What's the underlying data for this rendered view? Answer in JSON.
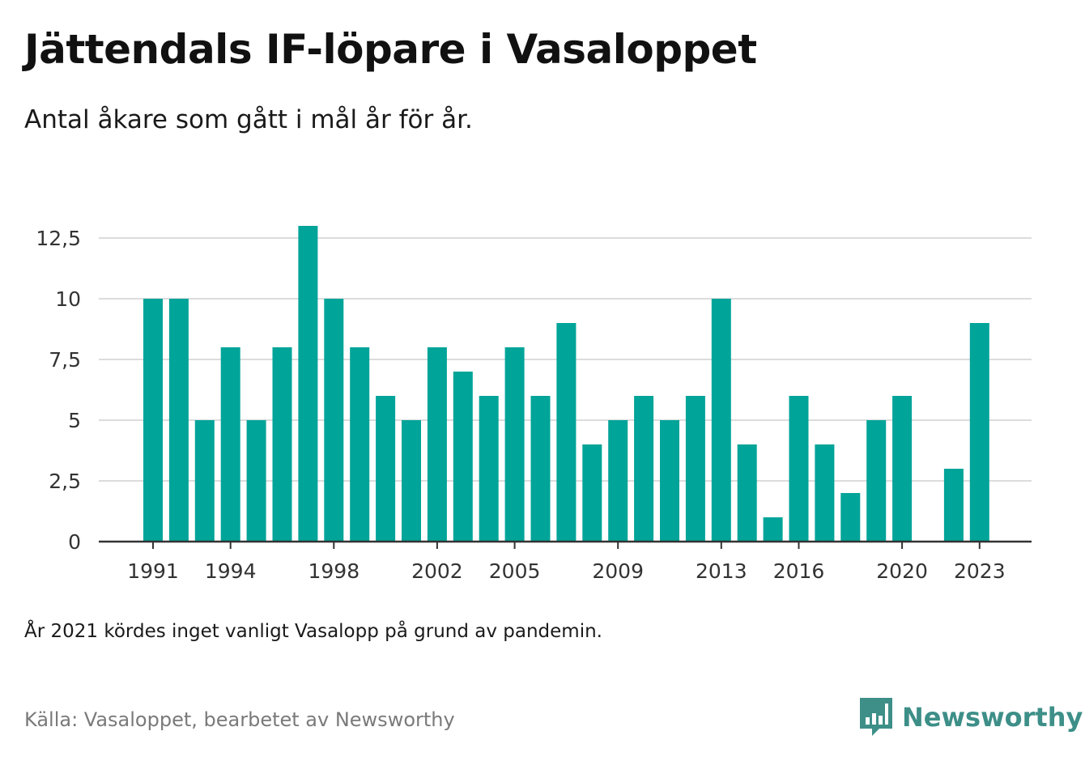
{
  "header": {
    "title": "Jättendals IF-löpare i Vasaloppet",
    "subtitle": "Antal åkare som gått i mål år för år."
  },
  "chart_data": {
    "type": "bar",
    "categories": [
      "1991",
      "1992",
      "1993",
      "1994",
      "1995",
      "1996",
      "1997",
      "1998",
      "1999",
      "2000",
      "2001",
      "2002",
      "2003",
      "2004",
      "2005",
      "2006",
      "2007",
      "2008",
      "2009",
      "2010",
      "2011",
      "2012",
      "2013",
      "2014",
      "2015",
      "2016",
      "2017",
      "2018",
      "2019",
      "2020",
      "2021",
      "2022",
      "2023"
    ],
    "values": [
      10,
      10,
      5,
      8,
      5,
      8,
      13,
      10,
      8,
      6,
      5,
      8,
      7,
      6,
      8,
      6,
      9,
      4,
      5,
      6,
      5,
      6,
      10,
      4,
      1,
      6,
      4,
      2,
      5,
      6,
      null,
      3,
      9
    ],
    "x_tick_labels": [
      "1991",
      "1994",
      "1998",
      "2002",
      "2005",
      "2009",
      "2013",
      "2016",
      "2020",
      "2023"
    ],
    "y_ticks": [
      0,
      2.5,
      5,
      7.5,
      10,
      12.5
    ],
    "y_tick_labels": [
      "0",
      "2,5",
      "5",
      "7,5",
      "10",
      "12,5"
    ],
    "ylim": [
      0,
      13
    ],
    "grid": true,
    "bar_color": "#00a499",
    "title": "Jättendals IF-löpare i Vasaloppet",
    "xlabel": "",
    "ylabel": ""
  },
  "footer": {
    "note": "År 2021 kördes inget vanligt Vasalopp på grund av pandemin.",
    "source": "Källa: Vasaloppet, bearbetet av Newsworthy",
    "brand": "Newsworthy",
    "brand_color": "#3d8f88",
    "brand_icon": "newsworthy-logo-icon"
  }
}
